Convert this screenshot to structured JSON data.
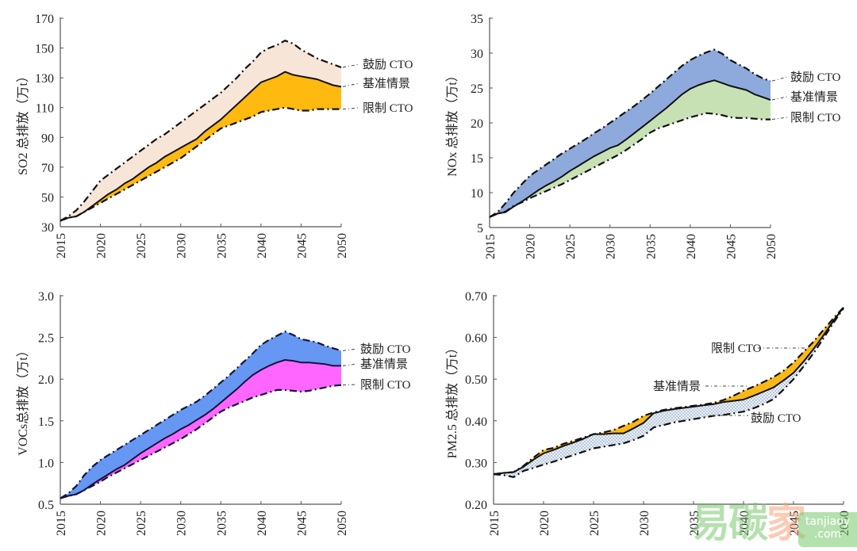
{
  "chart_data": [
    {
      "id": "so2",
      "type": "area",
      "title": "",
      "ylabel": "SO2 总排放（万t）",
      "xlabel": "",
      "x": [
        2015,
        2016,
        2017,
        2018,
        2019,
        2020,
        2021,
        2022,
        2023,
        2024,
        2025,
        2026,
        2027,
        2028,
        2029,
        2030,
        2031,
        2032,
        2033,
        2034,
        2035,
        2036,
        2037,
        2038,
        2039,
        2040,
        2041,
        2042,
        2043,
        2044,
        2045,
        2046,
        2047,
        2048,
        2049,
        2050
      ],
      "xlim": [
        2015,
        2050
      ],
      "ylim": [
        30,
        170
      ],
      "xticks": [
        "2015",
        "2020",
        "2025",
        "2030",
        "2035",
        "2040",
        "2045",
        "2050"
      ],
      "yticks": [
        "30",
        "50",
        "70",
        "90",
        "110",
        "130",
        "150",
        "170"
      ],
      "series": [
        {
          "name": "鼓励 CTO",
          "style": "dash-dot",
          "values": [
            34,
            37,
            41,
            47,
            54,
            61,
            65,
            69,
            73,
            77,
            81,
            85,
            89,
            92,
            96,
            100,
            104,
            108,
            112,
            116,
            120,
            125,
            130,
            136,
            141,
            147,
            150,
            152,
            155,
            153,
            149,
            146,
            143,
            141,
            139,
            137
          ]
        },
        {
          "name": "基准情景",
          "style": "solid",
          "values": [
            34,
            36,
            37,
            40,
            44,
            48,
            52,
            55,
            59,
            62,
            66,
            70,
            73,
            77,
            80,
            83,
            86,
            89,
            94,
            98,
            102,
            107,
            112,
            117,
            122,
            127,
            129,
            131,
            134,
            132,
            131,
            130,
            129,
            127,
            125,
            124
          ]
        },
        {
          "name": "限制 CTO",
          "style": "dash-dot",
          "values": [
            34,
            36,
            37,
            40,
            43,
            46,
            49,
            52,
            55,
            58,
            61,
            64,
            67,
            70,
            73,
            76,
            80,
            84,
            88,
            92,
            96,
            98,
            100,
            102,
            104,
            107,
            108,
            109,
            110,
            109,
            108,
            108,
            109,
            109,
            109,
            109
          ]
        }
      ],
      "fills": {
        "upper": "#f7e5d8",
        "lower": "#ffb90f"
      },
      "labels": [
        "鼓励 CTO",
        "基准情景",
        "限制 CTO"
      ]
    },
    {
      "id": "nox",
      "type": "area",
      "title": "",
      "ylabel": "NOx 总排放（万t）",
      "xlabel": "",
      "x": [
        2015,
        2016,
        2017,
        2018,
        2019,
        2020,
        2021,
        2022,
        2023,
        2024,
        2025,
        2026,
        2027,
        2028,
        2029,
        2030,
        2031,
        2032,
        2033,
        2034,
        2035,
        2036,
        2037,
        2038,
        2039,
        2040,
        2041,
        2042,
        2043,
        2044,
        2045,
        2046,
        2047,
        2048,
        2049,
        2050
      ],
      "xlim": [
        2015,
        2050
      ],
      "ylim": [
        5,
        35
      ],
      "xticks": [
        "2015",
        "2020",
        "2025",
        "2030",
        "2035",
        "2040",
        "2045",
        "2050"
      ],
      "yticks": [
        "5",
        "10",
        "15",
        "20",
        "25",
        "30",
        "35"
      ],
      "series": [
        {
          "name": "鼓励 CTO",
          "style": "dash-dot",
          "values": [
            6.5,
            7.2,
            8.5,
            10.0,
            11.2,
            12.4,
            13.2,
            14.0,
            14.8,
            15.6,
            16.3,
            17.0,
            17.7,
            18.5,
            19.2,
            20.0,
            20.8,
            21.6,
            22.4,
            23.3,
            24.2,
            25.2,
            26.2,
            27.2,
            28.2,
            29.0,
            29.6,
            30.1,
            30.5,
            29.9,
            29.0,
            28.4,
            27.8,
            27.0,
            26.4,
            26.0
          ]
        },
        {
          "name": "基准情景",
          "style": "solid",
          "values": [
            6.5,
            7.0,
            7.2,
            8.0,
            8.7,
            9.5,
            10.3,
            11.0,
            11.6,
            12.3,
            13.1,
            13.8,
            14.5,
            15.2,
            15.8,
            16.4,
            16.8,
            17.6,
            18.5,
            19.4,
            20.3,
            21.2,
            22.1,
            23.1,
            24.1,
            24.9,
            25.4,
            25.8,
            26.1,
            25.7,
            25.3,
            25.0,
            24.7,
            24.1,
            23.7,
            23.3
          ]
        },
        {
          "name": "限制 CTO",
          "style": "dash-dot",
          "values": [
            6.5,
            7.0,
            7.3,
            8.1,
            8.6,
            9.2,
            9.7,
            10.2,
            10.7,
            11.2,
            11.8,
            12.4,
            13.0,
            13.6,
            14.2,
            14.8,
            15.4,
            16.1,
            16.9,
            17.7,
            18.6,
            19.2,
            19.6,
            20.0,
            20.4,
            20.8,
            21.1,
            21.4,
            21.3,
            21.1,
            20.8,
            20.7,
            20.7,
            20.6,
            20.5,
            20.5
          ]
        }
      ],
      "fills": {
        "upper": "#8eaadc",
        "lower": "#c7e1b5"
      },
      "labels": [
        "鼓励 CTO",
        "基准情景",
        "限制 CTO"
      ]
    },
    {
      "id": "vocs",
      "type": "area",
      "title": "",
      "ylabel": "VOCs总排放（万t）",
      "xlabel": "",
      "x": [
        2015,
        2016,
        2017,
        2018,
        2019,
        2020,
        2021,
        2022,
        2023,
        2024,
        2025,
        2026,
        2027,
        2028,
        2029,
        2030,
        2031,
        2032,
        2033,
        2034,
        2035,
        2036,
        2037,
        2038,
        2039,
        2040,
        2041,
        2042,
        2043,
        2044,
        2045,
        2046,
        2047,
        2048,
        2049,
        2050
      ],
      "xlim": [
        2015,
        2050
      ],
      "ylim": [
        0.5,
        3.0
      ],
      "xticks": [
        "2015",
        "2020",
        "2025",
        "2030",
        "2035",
        "2040",
        "2045",
        "2050"
      ],
      "yticks": [
        "0.5",
        "1.0",
        "1.5",
        "2.0",
        "2.5",
        "3.0"
      ],
      "series": [
        {
          "name": "鼓励 CTO",
          "style": "dash-dot",
          "values": [
            0.57,
            0.63,
            0.72,
            0.85,
            0.95,
            1.03,
            1.09,
            1.15,
            1.21,
            1.27,
            1.33,
            1.39,
            1.45,
            1.51,
            1.57,
            1.63,
            1.68,
            1.73,
            1.8,
            1.88,
            1.96,
            2.04,
            2.13,
            2.22,
            2.31,
            2.41,
            2.47,
            2.52,
            2.57,
            2.53,
            2.48,
            2.46,
            2.44,
            2.4,
            2.37,
            2.34
          ]
        },
        {
          "name": "基准情景",
          "style": "solid",
          "values": [
            0.57,
            0.6,
            0.62,
            0.67,
            0.74,
            0.8,
            0.86,
            0.92,
            0.97,
            1.04,
            1.11,
            1.17,
            1.23,
            1.29,
            1.34,
            1.4,
            1.45,
            1.51,
            1.57,
            1.64,
            1.72,
            1.8,
            1.88,
            1.97,
            2.05,
            2.11,
            2.16,
            2.2,
            2.23,
            2.22,
            2.2,
            2.2,
            2.19,
            2.18,
            2.16,
            2.16
          ]
        },
        {
          "name": "限制 CTO",
          "style": "dash-dot",
          "values": [
            0.57,
            0.6,
            0.62,
            0.67,
            0.72,
            0.77,
            0.83,
            0.88,
            0.93,
            0.98,
            1.03,
            1.08,
            1.13,
            1.18,
            1.23,
            1.28,
            1.34,
            1.4,
            1.47,
            1.54,
            1.61,
            1.66,
            1.7,
            1.74,
            1.78,
            1.81,
            1.84,
            1.87,
            1.87,
            1.86,
            1.85,
            1.86,
            1.88,
            1.9,
            1.92,
            1.93
          ]
        }
      ],
      "fills": {
        "upper": "#6697f2",
        "lower": "#ff66ff"
      },
      "labels": [
        "鼓励 CTO",
        "基准情景",
        "限制 CTO"
      ]
    },
    {
      "id": "pm25",
      "type": "area",
      "title": "",
      "ylabel": "PM2.5 总排放（万t）",
      "xlabel": "",
      "x": [
        2015,
        2016,
        2017,
        2018,
        2019,
        2020,
        2021,
        2022,
        2023,
        2024,
        2025,
        2026,
        2027,
        2028,
        2029,
        2030,
        2031,
        2032,
        2033,
        2034,
        2035,
        2036,
        2037,
        2038,
        2039,
        2040,
        2041,
        2042,
        2043,
        2044,
        2045,
        2046,
        2047,
        2048,
        2049,
        2050
      ],
      "xlim": [
        2015,
        2050
      ],
      "ylim": [
        0.2,
        0.7
      ],
      "xticks": [
        "2015",
        "2020",
        "2025",
        "2030",
        "2035",
        "2040",
        "2045",
        "2050"
      ],
      "yticks": [
        "0.20",
        "0.30",
        "0.40",
        "0.50",
        "0.60",
        "0.70"
      ],
      "series": [
        {
          "name": "限制 CTO",
          "style": "dash-dot",
          "values": [
            0.272,
            0.275,
            0.277,
            0.292,
            0.312,
            0.33,
            0.335,
            0.345,
            0.352,
            0.36,
            0.368,
            0.372,
            0.378,
            0.388,
            0.398,
            0.412,
            0.42,
            0.426,
            0.43,
            0.433,
            0.436,
            0.439,
            0.443,
            0.45,
            0.46,
            0.472,
            0.482,
            0.493,
            0.505,
            0.52,
            0.54,
            0.565,
            0.59,
            0.618,
            0.646,
            0.672
          ]
        },
        {
          "name": "基准情景",
          "style": "solid",
          "values": [
            0.272,
            0.275,
            0.277,
            0.29,
            0.307,
            0.322,
            0.33,
            0.34,
            0.348,
            0.357,
            0.368,
            0.368,
            0.37,
            0.37,
            0.382,
            0.395,
            0.418,
            0.424,
            0.428,
            0.431,
            0.434,
            0.437,
            0.44,
            0.445,
            0.448,
            0.451,
            0.46,
            0.47,
            0.48,
            0.497,
            0.515,
            0.542,
            0.572,
            0.605,
            0.64,
            0.672
          ]
        },
        {
          "name": "鼓励 CTO",
          "style": "dash-dot",
          "values": [
            0.272,
            0.27,
            0.265,
            0.28,
            0.287,
            0.295,
            0.302,
            0.31,
            0.318,
            0.326,
            0.334,
            0.338,
            0.342,
            0.346,
            0.354,
            0.364,
            0.384,
            0.39,
            0.396,
            0.4,
            0.404,
            0.408,
            0.412,
            0.414,
            0.418,
            0.422,
            0.43,
            0.44,
            0.452,
            0.475,
            0.5,
            0.53,
            0.562,
            0.598,
            0.635,
            0.67
          ]
        }
      ],
      "fills": {
        "upper": "#f9b817",
        "lower": "#c9d6e6"
      },
      "labels": [
        "限制 CTO",
        "基准情景",
        "鼓励 CTO"
      ]
    }
  ],
  "watermark": {
    "cn": [
      "易",
      "碳",
      "家"
    ],
    "domain_line1": "tanjiaoy",
    "domain_line2": ".com"
  }
}
